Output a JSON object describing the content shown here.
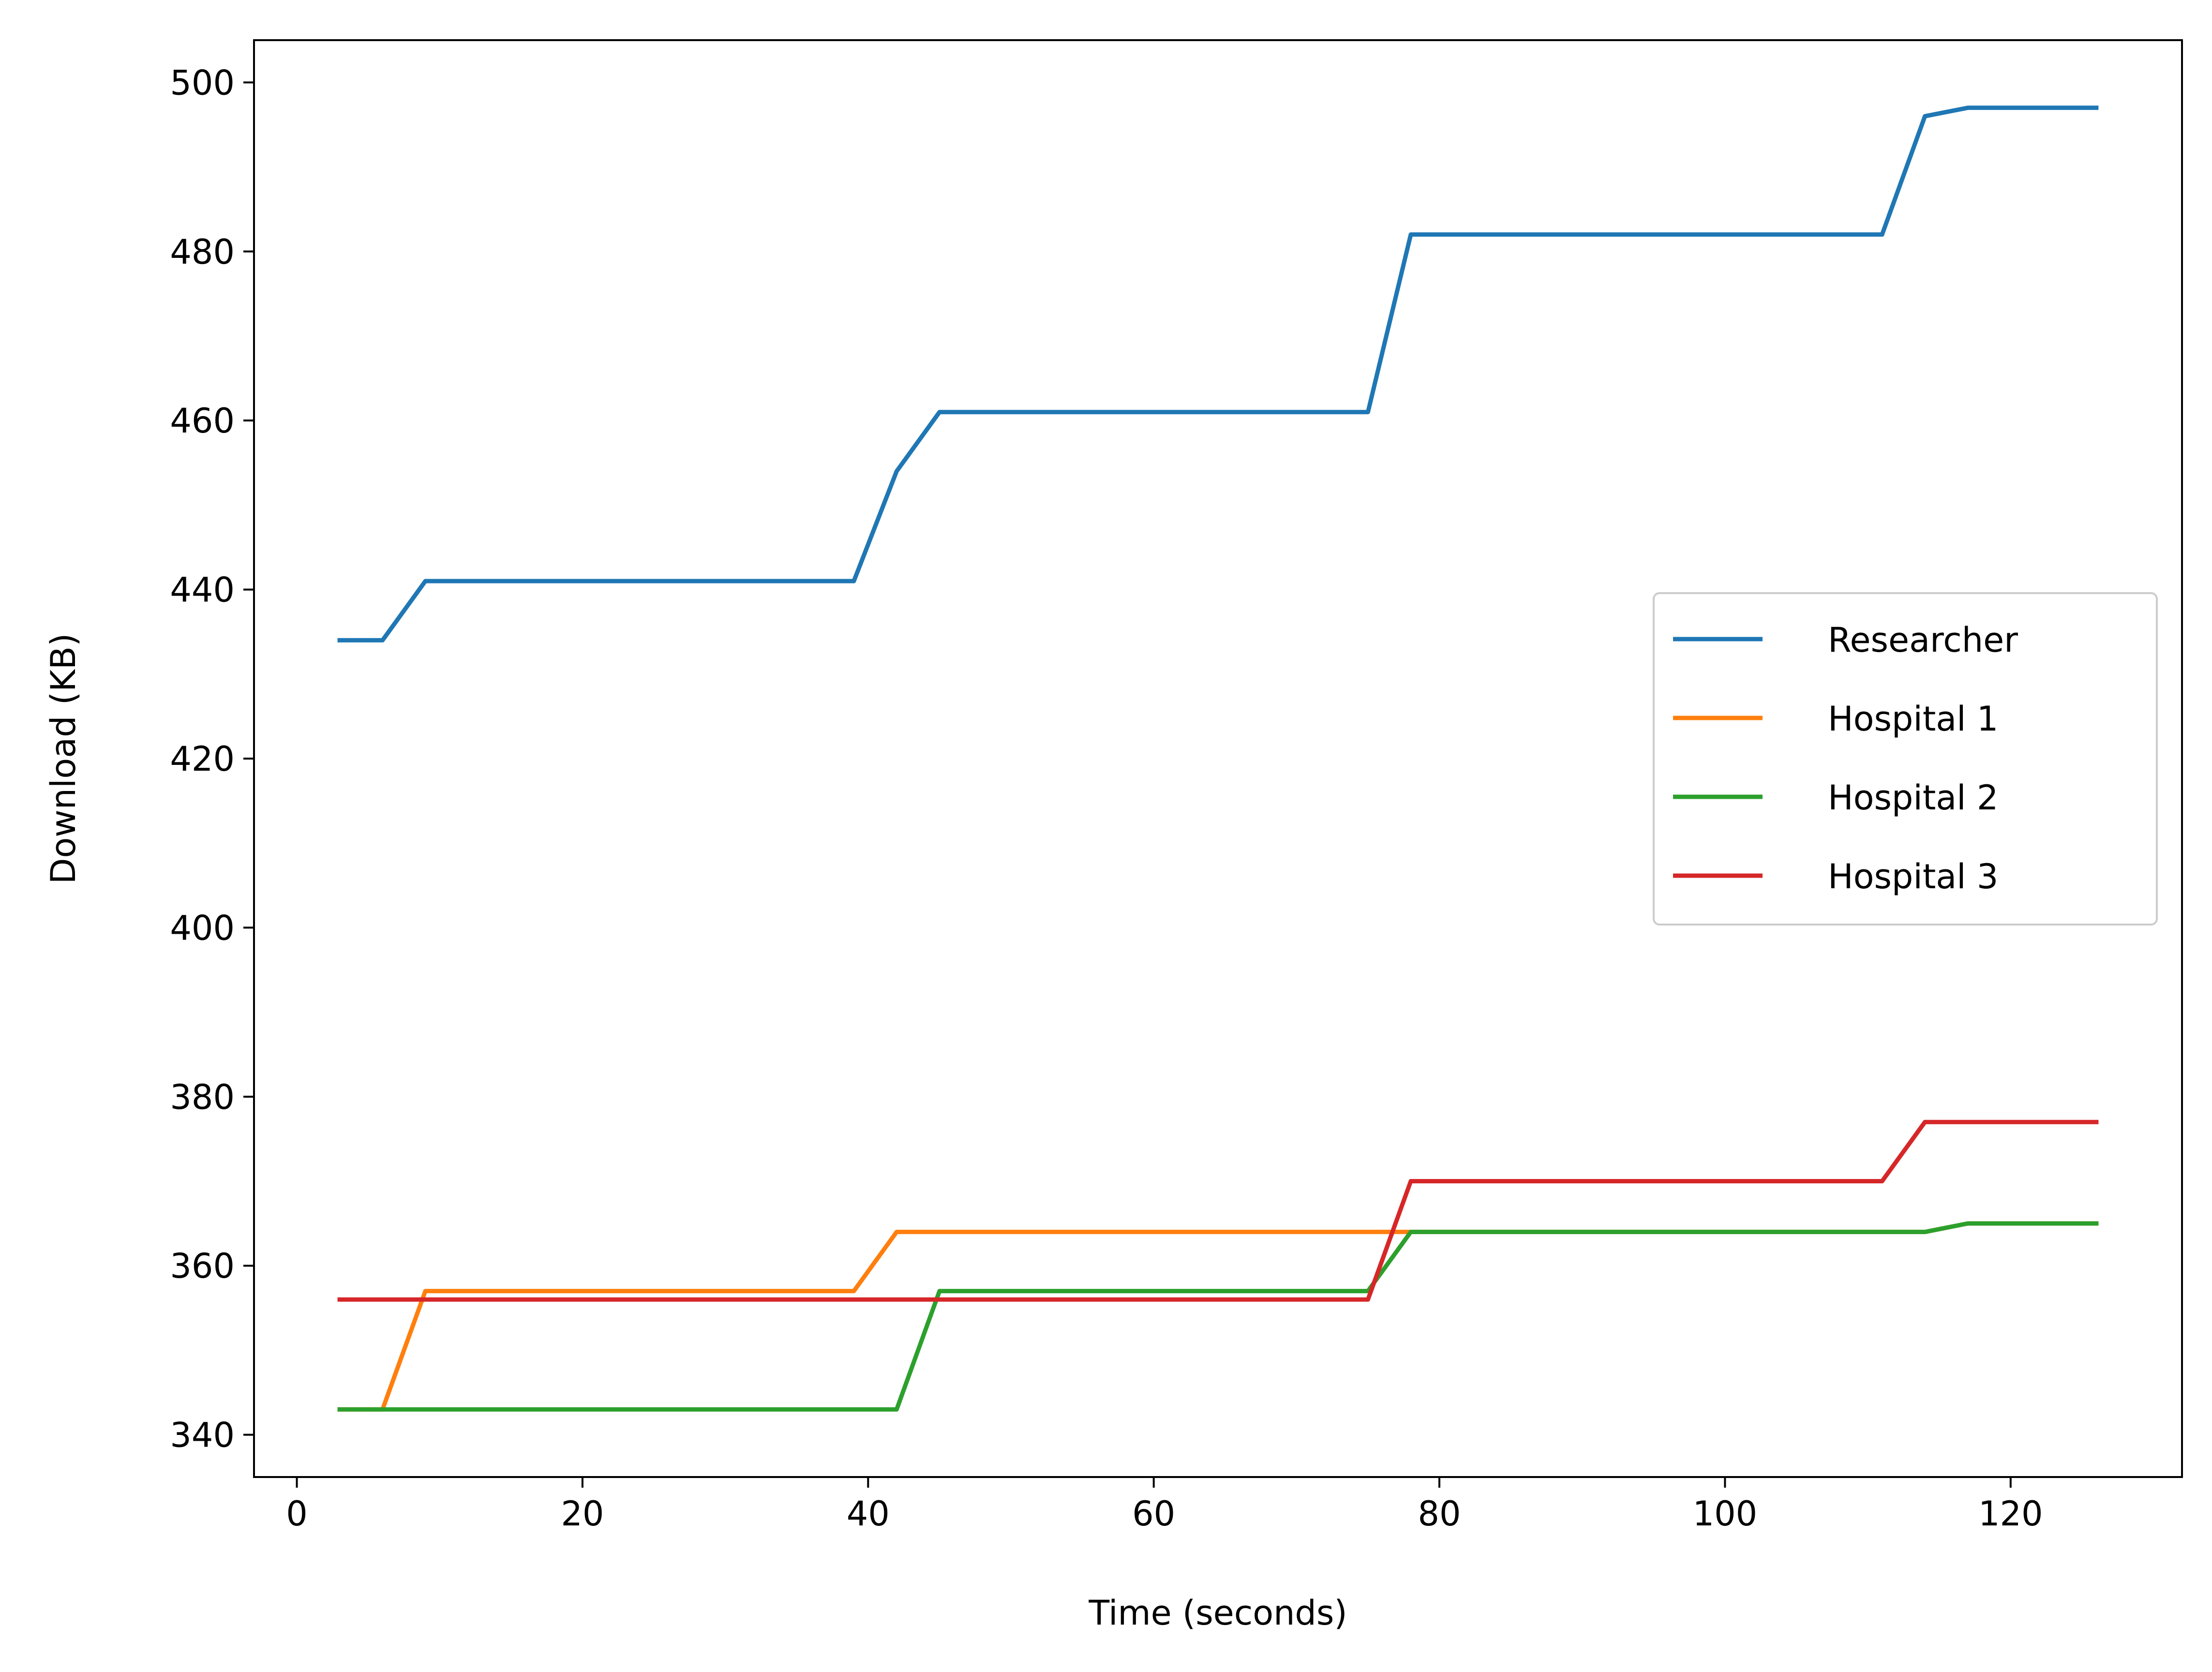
{
  "chart_data": {
    "type": "line",
    "title": "",
    "xlabel": "Time (seconds)",
    "ylabel": "Download (KB)",
    "xlim": [
      -3,
      132
    ],
    "ylim": [
      335,
      505
    ],
    "xticks": [
      0,
      20,
      40,
      60,
      80,
      100,
      120
    ],
    "yticks": [
      340,
      360,
      380,
      400,
      420,
      440,
      460,
      480,
      500
    ],
    "grid": false,
    "legend_position": "center-right",
    "x": [
      3,
      6,
      9,
      12,
      15,
      18,
      21,
      24,
      27,
      30,
      33,
      36,
      39,
      42,
      45,
      48,
      51,
      54,
      57,
      60,
      63,
      66,
      69,
      72,
      75,
      78,
      81,
      84,
      87,
      90,
      93,
      96,
      99,
      102,
      105,
      108,
      111,
      114,
      117,
      120,
      123,
      126
    ],
    "series": [
      {
        "name": "Researcher",
        "color": "#1f77b4",
        "values": [
          434,
          434,
          441,
          441,
          441,
          441,
          441,
          441,
          441,
          441,
          441,
          441,
          441,
          454,
          461,
          461,
          461,
          461,
          461,
          461,
          461,
          461,
          461,
          461,
          461,
          482,
          482,
          482,
          482,
          482,
          482,
          482,
          482,
          482,
          482,
          482,
          482,
          496,
          497,
          497,
          497,
          497
        ]
      },
      {
        "name": "Hospital 1",
        "color": "#ff7f0e",
        "values": [
          343,
          343,
          357,
          357,
          357,
          357,
          357,
          357,
          357,
          357,
          357,
          357,
          357,
          364,
          364,
          364,
          364,
          364,
          364,
          364,
          364,
          364,
          364,
          364,
          364,
          364,
          364,
          364,
          364,
          364,
          364,
          364,
          364,
          364,
          364,
          364,
          364,
          364,
          365,
          365,
          365,
          365
        ]
      },
      {
        "name": "Hospital 2",
        "color": "#2ca02c",
        "values": [
          343,
          343,
          343,
          343,
          343,
          343,
          343,
          343,
          343,
          343,
          343,
          343,
          343,
          343,
          357,
          357,
          357,
          357,
          357,
          357,
          357,
          357,
          357,
          357,
          357,
          364,
          364,
          364,
          364,
          364,
          364,
          364,
          364,
          364,
          364,
          364,
          364,
          364,
          365,
          365,
          365,
          365
        ]
      },
      {
        "name": "Hospital 3",
        "color": "#d62728",
        "values": [
          356,
          356,
          356,
          356,
          356,
          356,
          356,
          356,
          356,
          356,
          356,
          356,
          356,
          356,
          356,
          356,
          356,
          356,
          356,
          356,
          356,
          356,
          356,
          356,
          356,
          370,
          370,
          370,
          370,
          370,
          370,
          370,
          370,
          370,
          370,
          370,
          370,
          377,
          377,
          377,
          377,
          377
        ]
      }
    ]
  }
}
